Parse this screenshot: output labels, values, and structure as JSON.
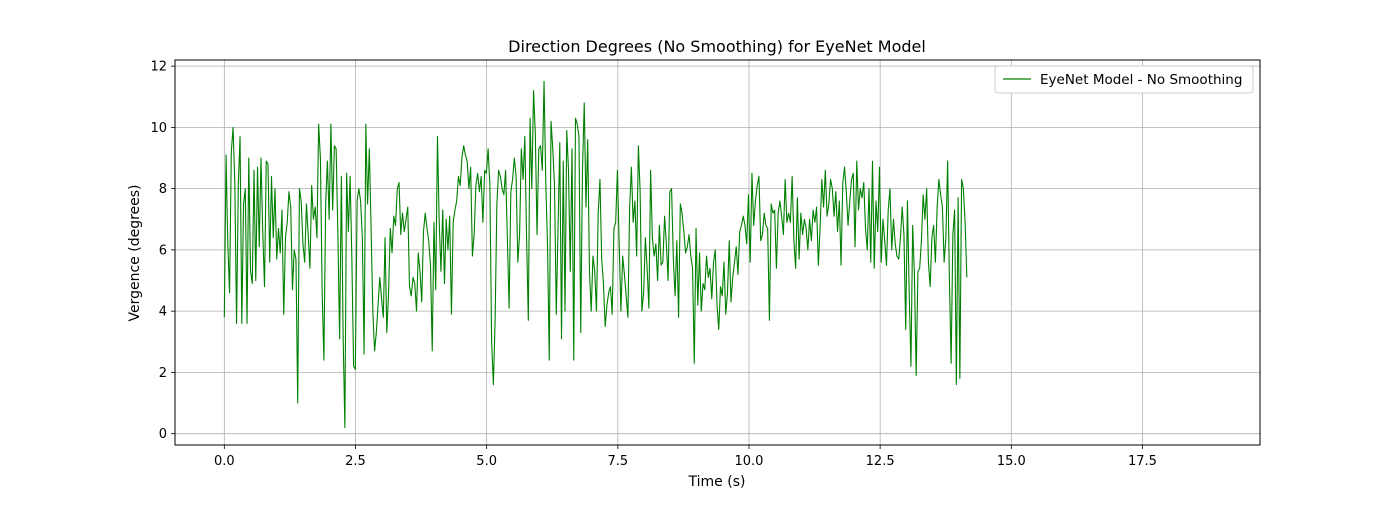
{
  "chart_data": {
    "type": "line",
    "title": "Direction Degrees (No Smoothing) for EyeNet Model",
    "xlabel": "Time (s)",
    "ylabel": "Vergence (degrees)",
    "xlim": [
      -0.94,
      19.74
    ],
    "ylim": [
      -0.37,
      12.2
    ],
    "xticks": [
      0.0,
      2.5,
      5.0,
      7.5,
      10.0,
      12.5,
      15.0,
      17.5
    ],
    "xtick_labels": [
      "0.0",
      "2.5",
      "5.0",
      "7.5",
      "10.0",
      "12.5",
      "15.0",
      "17.5"
    ],
    "yticks": [
      0,
      2,
      4,
      6,
      8,
      10,
      12
    ],
    "ytick_labels": [
      "0",
      "2",
      "4",
      "6",
      "8",
      "10",
      "12"
    ],
    "grid": true,
    "legend_position": "top-right",
    "line_color": "#008000",
    "series": [
      {
        "name": "EyeNet Model - No Smoothing",
        "x_start": 0.0,
        "x_step": 0.0333,
        "values": [
          3.8,
          9.1,
          6.2,
          4.6,
          9.2,
          10.0,
          8.2,
          3.6,
          8.1,
          9.7,
          3.6,
          7.5,
          8.0,
          3.6,
          9.0,
          5.3,
          4.9,
          8.6,
          5.0,
          8.7,
          6.1,
          9.0,
          6.6,
          4.8,
          8.9,
          8.8,
          5.6,
          8.4,
          6.4,
          8.0,
          5.7,
          6.7,
          5.9,
          7.3,
          3.9,
          6.4,
          6.9,
          7.9,
          7.4,
          4.7,
          6.0,
          5.7,
          1.0,
          8.0,
          7.6,
          6.2,
          5.6,
          7.5,
          6.5,
          5.4,
          8.1,
          7.0,
          7.4,
          6.4,
          10.1,
          9.0,
          4.6,
          2.4,
          7.5,
          8.9,
          7.0,
          10.1,
          7.3,
          9.4,
          9.3,
          6.5,
          3.1,
          8.4,
          3.2,
          0.2,
          8.5,
          6.6,
          8.4,
          5.7,
          2.2,
          2.1,
          7.6,
          8.0,
          7.6,
          6.4,
          2.6,
          10.1,
          7.5,
          9.3,
          6.7,
          4.0,
          2.7,
          3.3,
          4.2,
          5.1,
          4.4,
          3.8,
          6.4,
          3.3,
          4.6,
          6.7,
          5.9,
          7.1,
          6.8,
          8.0,
          8.2,
          6.5,
          7.2,
          6.6,
          7.0,
          7.4,
          4.8,
          4.5,
          5.1,
          4.9,
          4.0,
          5.9,
          5.3,
          4.3,
          6.6,
          7.2,
          6.7,
          6.3,
          5.5,
          2.7,
          6.9,
          4.7,
          9.7,
          6.9,
          5.3,
          7.3,
          4.9,
          7.0,
          6.0,
          7.1,
          3.9,
          6.9,
          7.3,
          7.6,
          8.4,
          8.1,
          9.0,
          9.4,
          9.1,
          8.9,
          8.0,
          8.7,
          5.8,
          6.5,
          8.1,
          8.5,
          7.9,
          8.4,
          6.9,
          8.6,
          8.5,
          9.3,
          8.1,
          3.0,
          1.6,
          3.7,
          7.5,
          8.6,
          8.4,
          8.0,
          7.8,
          8.6,
          6.4,
          4.1,
          7.9,
          8.3,
          9.0,
          8.4,
          5.6,
          6.5,
          9.3,
          8.3,
          9.7,
          6.4,
          3.7,
          10.3,
          8.0,
          11.2,
          9.8,
          6.5,
          9.3,
          9.4,
          8.6,
          11.5,
          8.2,
          6.1,
          2.4,
          10.2,
          9.3,
          8.1,
          3.9,
          6.7,
          9.5,
          3.1,
          8.9,
          4.0,
          9.9,
          8.6,
          5.3,
          9.3,
          2.4,
          10.3,
          10.1,
          9.7,
          3.3,
          8.6,
          10.8,
          7.4,
          9.6,
          5.3,
          4.0,
          5.8,
          5.3,
          4.0,
          7.2,
          8.3,
          5.7,
          4.9,
          3.5,
          4.2,
          4.6,
          4.8,
          3.9,
          6.7,
          6.9,
          8.6,
          6.2,
          4.0,
          5.8,
          5.2,
          4.5,
          3.8,
          7.4,
          8.7,
          6.9,
          7.6,
          5.8,
          9.4,
          7.9,
          4.0,
          4.6,
          6.4,
          5.4,
          4.1,
          8.6,
          6.4,
          5.8,
          6.2,
          5.0,
          6.8,
          5.5,
          5.6,
          7.1,
          6.2,
          5.0,
          7.9,
          8.0,
          5.7,
          4.5,
          6.3,
          3.8,
          7.5,
          7.2,
          6.6,
          5.9,
          6.1,
          6.5,
          5.8,
          5.4,
          2.3,
          6.7,
          4.2,
          5.9,
          4.0,
          4.9,
          4.7,
          5.8,
          5.1,
          5.4,
          4.4,
          5.6,
          6.0,
          4.2,
          3.4,
          4.8,
          4.5,
          5.6,
          3.9,
          4.6,
          6.3,
          4.3,
          5.1,
          5.6,
          6.1,
          5.2,
          6.6,
          6.8,
          7.1,
          6.8,
          6.2,
          7.8,
          5.6,
          8.5,
          6.8,
          7.6,
          8.1,
          8.4,
          6.3,
          6.5,
          7.2,
          6.8,
          6.7,
          3.7,
          7.5,
          7.2,
          7.3,
          5.4,
          7.2,
          7.6,
          7.1,
          6.5,
          8.3,
          6.9,
          7.2,
          6.9,
          8.4,
          6.3,
          5.4,
          7.7,
          5.7,
          7.2,
          6.5,
          7.0,
          6.7,
          6.0,
          7.0,
          6.3,
          7.3,
          6.9,
          7.4,
          5.5,
          6.7,
          8.3,
          7.4,
          8.6,
          7.1,
          7.5,
          8.3,
          8.0,
          7.1,
          7.9,
          6.6,
          7.6,
          5.5,
          8.2,
          8.7,
          7.9,
          6.8,
          7.6,
          8.3,
          8.5,
          6.1,
          8.9,
          7.3,
          8.0,
          7.7,
          8.2,
          6.7,
          6.0,
          8.0,
          5.6,
          8.9,
          5.4,
          7.6,
          6.6,
          8.7,
          5.6,
          7.0,
          6.3,
          5.5,
          7.3,
          8.0,
          6.0,
          7.0,
          6.2,
          5.8,
          5.7,
          6.4,
          7.4,
          6.5,
          3.4,
          7.6,
          4.6,
          2.2,
          6.8,
          5.2,
          1.9,
          5.3,
          5.4,
          6.3,
          7.8,
          7.0,
          8.0,
          5.6,
          4.8,
          6.4,
          6.8,
          5.6,
          7.4,
          8.3,
          7.8,
          7.4,
          5.6,
          6.4,
          8.9,
          5.1,
          2.3,
          6.5,
          7.3,
          1.6,
          7.7,
          1.8,
          8.3,
          8.0,
          6.9,
          5.1
        ]
      }
    ]
  }
}
